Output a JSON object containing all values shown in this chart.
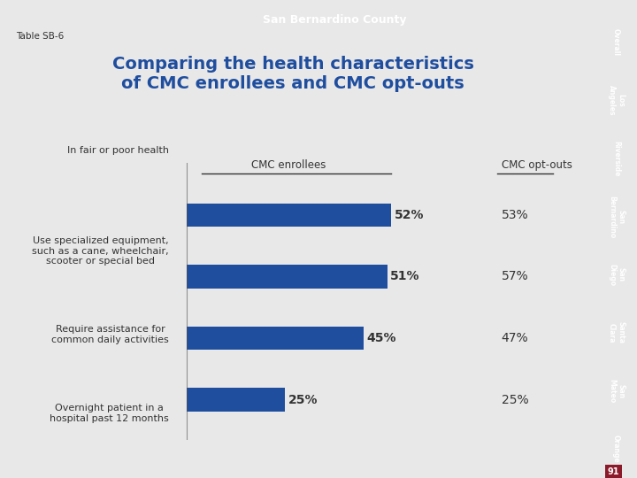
{
  "title_line1": "Comparing the health characteristics",
  "title_line2": "of CMC enrollees and CMC opt-outs",
  "table_label": "Table SB-6",
  "header_county": "San Bernardino County",
  "col_header_enrollees": "CMC enrollees",
  "col_header_optouts": "CMC opt-outs",
  "categories": [
    "In fair or poor health",
    "Use specialized equipment,\nsuch as a cane, wheelchair,\nscooter or special bed",
    "Require assistance for\ncommon daily activities",
    "Overnight patient in a\nhospital past 12 months"
  ],
  "enrollee_values": [
    52,
    51,
    45,
    25
  ],
  "optout_values": [
    53,
    57,
    47,
    25
  ],
  "bar_color": "#1F4E9F",
  "title_color": "#1F4E9F",
  "bg_color": "#FFFFFF",
  "header_bg": "#1F4E9F",
  "header_text_color": "#FFFFFF",
  "green_color": "#7AB648",
  "orange_color": "#D97C2B",
  "blue_tab_color": "#1F4E9F",
  "right_tab_colors": [
    "#D97C2B",
    "#D97C2B",
    "#D97C2B",
    "#1F4E9F",
    "#D97C2B",
    "#D97C2B",
    "#D97C2B",
    "#D97C2B"
  ],
  "right_tab_labels": [
    "Overall",
    "Los\nAngeles",
    "Riverside",
    "San\nBernardino",
    "San\nDiego",
    "Santa\nClara",
    "San\nMateo",
    "Orange"
  ],
  "page_number": "91",
  "page_bg_color": "#8B1A2B"
}
